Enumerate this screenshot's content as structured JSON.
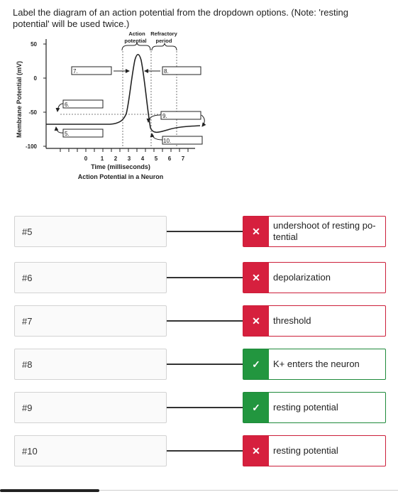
{
  "instructions": "Label the diagram of an action potential from the dropdown options. (Note: 'resting potential' will be used twice.)",
  "diagram": {
    "y_axis_label": "Membrane Potential (mV)",
    "y_ticks": [
      "50",
      "0",
      "-50",
      "-100"
    ],
    "x_ticks": [
      "0",
      "1",
      "2",
      "3",
      "4",
      "5",
      "6",
      "7"
    ],
    "x_axis_label": "Time (milliseconds)",
    "caption": "Action Potential in a Neuron",
    "top_label_1": "Action",
    "top_label_2": "potential",
    "top_label_3": "Refractory",
    "top_label_4": "period",
    "box_labels": {
      "b5": "5.",
      "b6": "6.",
      "b7": "7.",
      "b8": "8.",
      "b9": "9.",
      "b10": "10."
    }
  },
  "rows": [
    {
      "prompt": "#5",
      "answer": "undershoot of resting po-tential",
      "status": "wrong",
      "mark": "✕"
    },
    {
      "prompt": "#6",
      "answer": "depolarization",
      "status": "wrong",
      "mark": "✕"
    },
    {
      "prompt": "#7",
      "answer": "threshold",
      "status": "wrong",
      "mark": "✕"
    },
    {
      "prompt": "#8",
      "answer": "K+ enters the neuron",
      "status": "right",
      "mark": "✓"
    },
    {
      "prompt": "#9",
      "answer": "resting potential",
      "status": "right",
      "mark": "✓"
    },
    {
      "prompt": "#10",
      "answer": "resting potential",
      "status": "wrong",
      "mark": "✕"
    }
  ]
}
